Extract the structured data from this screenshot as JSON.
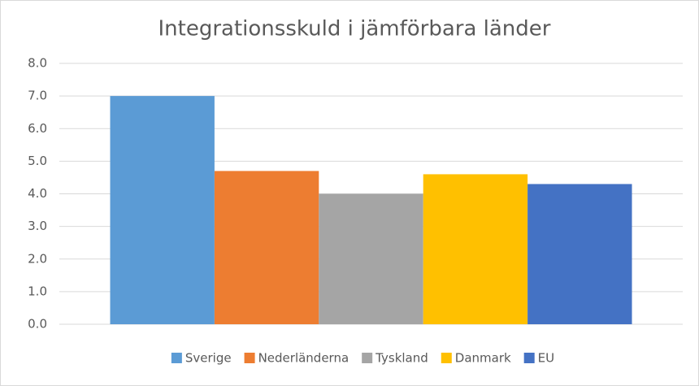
{
  "chart_data": {
    "type": "bar",
    "title": "Integrationsskuld i jämförbara länder",
    "categories": [
      null
    ],
    "series": [
      {
        "name": "Sverige",
        "color": "#5b9bd5",
        "values": [
          7.0
        ]
      },
      {
        "name": "Nederländerna",
        "color": "#ed7d31",
        "values": [
          4.7
        ]
      },
      {
        "name": "Tyskland",
        "color": "#a5a5a5",
        "values": [
          4.0
        ]
      },
      {
        "name": "Danmark",
        "color": "#ffc000",
        "values": [
          4.6
        ]
      },
      {
        "name": "EU",
        "color": "#4472c4",
        "values": [
          4.3
        ]
      }
    ],
    "ylim": [
      0,
      8
    ],
    "yticks": [
      {
        "value": 0,
        "label": "0.0"
      },
      {
        "value": 1,
        "label": "1.0"
      },
      {
        "value": 2,
        "label": "2.0"
      },
      {
        "value": 3,
        "label": "3.0"
      },
      {
        "value": 4,
        "label": "4.0"
      },
      {
        "value": 5,
        "label": "5.0"
      },
      {
        "value": 6,
        "label": "6.0"
      },
      {
        "value": 7,
        "label": "7.0"
      },
      {
        "value": 8,
        "label": "8.0"
      }
    ],
    "grid": true,
    "legend": "bottom"
  }
}
